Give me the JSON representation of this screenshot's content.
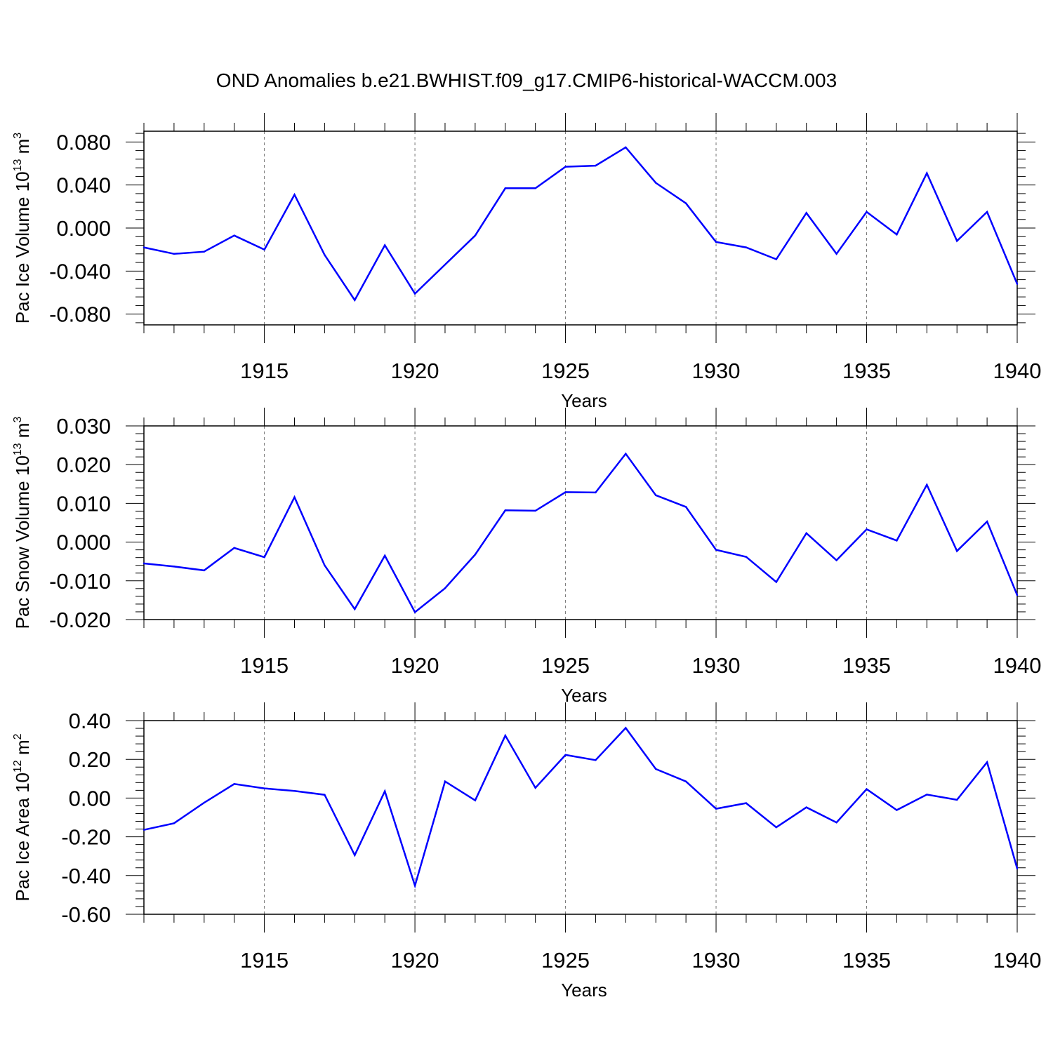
{
  "title": "OND Anomalies b.e21.BWHIST.f09_g17.CMIP6-historical-WACCM.003",
  "line_color": "#0000ff",
  "chart_data": [
    {
      "type": "line",
      "ylabel": "Pac Ice Volume 10",
      "ylabel_exp": "13",
      "ylabel_unit": " m",
      "ylabel_unit_exp": "3",
      "xlabel": "Years",
      "xlim": [
        1911,
        1940
      ],
      "ylim": [
        -0.09,
        0.09
      ],
      "yticks": [
        -0.08,
        -0.04,
        0.0,
        0.04,
        0.08
      ],
      "ytick_labels": [
        "-0.080",
        "-0.040",
        "0.000",
        "0.040",
        "0.080"
      ],
      "xticks": [
        1915,
        1920,
        1925,
        1930,
        1935,
        1940
      ],
      "xtick_labels": [
        "1915",
        "1920",
        "1925",
        "1930",
        "1935",
        "1940"
      ],
      "x": [
        1911,
        1912,
        1913,
        1914,
        1915,
        1916,
        1917,
        1918,
        1919,
        1920,
        1921,
        1922,
        1923,
        1924,
        1925,
        1926,
        1927,
        1928,
        1929,
        1930,
        1931,
        1932,
        1933,
        1934,
        1935,
        1936,
        1937,
        1938,
        1939,
        1940
      ],
      "values": [
        -0.018,
        -0.024,
        -0.022,
        -0.007,
        -0.02,
        0.031,
        -0.025,
        -0.067,
        -0.016,
        -0.061,
        -0.034,
        -0.007,
        0.037,
        0.037,
        0.057,
        0.058,
        0.075,
        0.042,
        0.023,
        -0.013,
        -0.018,
        -0.029,
        0.014,
        -0.024,
        0.015,
        -0.006,
        0.051,
        -0.012,
        0.015,
        -0.052
      ]
    },
    {
      "type": "line",
      "ylabel": "Pac Snow Volume 10",
      "ylabel_exp": "13",
      "ylabel_unit": " m",
      "ylabel_unit_exp": "3",
      "xlabel": "Years",
      "xlim": [
        1911,
        1940
      ],
      "ylim": [
        -0.02,
        0.03
      ],
      "yticks": [
        -0.02,
        -0.01,
        0.0,
        0.01,
        0.02,
        0.03
      ],
      "ytick_labels": [
        "-0.020",
        "-0.010",
        "0.000",
        "0.010",
        "0.020",
        "0.030"
      ],
      "xticks": [
        1915,
        1920,
        1925,
        1930,
        1935,
        1940
      ],
      "xtick_labels": [
        "1915",
        "1920",
        "1925",
        "1930",
        "1935",
        "1940"
      ],
      "x": [
        1911,
        1912,
        1913,
        1914,
        1915,
        1916,
        1917,
        1918,
        1919,
        1920,
        1921,
        1922,
        1923,
        1924,
        1925,
        1926,
        1927,
        1928,
        1929,
        1930,
        1931,
        1932,
        1933,
        1934,
        1935,
        1936,
        1937,
        1938,
        1939,
        1940
      ],
      "values": [
        -0.0055,
        -0.0063,
        -0.0073,
        -0.0015,
        -0.0039,
        0.0116,
        -0.006,
        -0.0173,
        -0.0035,
        -0.0181,
        -0.0119,
        -0.0032,
        0.0082,
        0.0081,
        0.0129,
        0.0128,
        0.0228,
        0.0121,
        0.0091,
        -0.002,
        -0.0038,
        -0.0103,
        0.0023,
        -0.0047,
        0.0033,
        0.0004,
        0.0148,
        -0.0023,
        0.0053,
        -0.0137
      ]
    },
    {
      "type": "line",
      "ylabel": "Pac Ice Area 10",
      "ylabel_exp": "12",
      "ylabel_unit": " m",
      "ylabel_unit_exp": "2",
      "xlabel": "Years",
      "xlim": [
        1911,
        1940
      ],
      "ylim": [
        -0.6,
        0.4
      ],
      "yticks": [
        -0.6,
        -0.4,
        -0.2,
        0.0,
        0.2,
        0.4
      ],
      "ytick_labels": [
        "-0.60",
        "-0.40",
        "-0.20",
        "0.00",
        "0.20",
        "0.40"
      ],
      "xticks": [
        1915,
        1920,
        1925,
        1930,
        1935,
        1940
      ],
      "xtick_labels": [
        "1915",
        "1920",
        "1925",
        "1930",
        "1935",
        "1940"
      ],
      "x": [
        1911,
        1912,
        1913,
        1914,
        1915,
        1916,
        1917,
        1918,
        1919,
        1920,
        1921,
        1922,
        1923,
        1924,
        1925,
        1926,
        1927,
        1928,
        1929,
        1930,
        1931,
        1932,
        1933,
        1934,
        1935,
        1936,
        1937,
        1938,
        1939,
        1940
      ],
      "values": [
        -0.164,
        -0.13,
        -0.024,
        0.073,
        0.05,
        0.037,
        0.017,
        -0.295,
        0.035,
        -0.452,
        0.086,
        -0.012,
        0.323,
        0.053,
        0.223,
        0.196,
        0.362,
        0.15,
        0.086,
        -0.055,
        -0.026,
        -0.151,
        -0.048,
        -0.126,
        0.046,
        -0.062,
        0.018,
        -0.009,
        0.185,
        -0.364
      ]
    }
  ]
}
